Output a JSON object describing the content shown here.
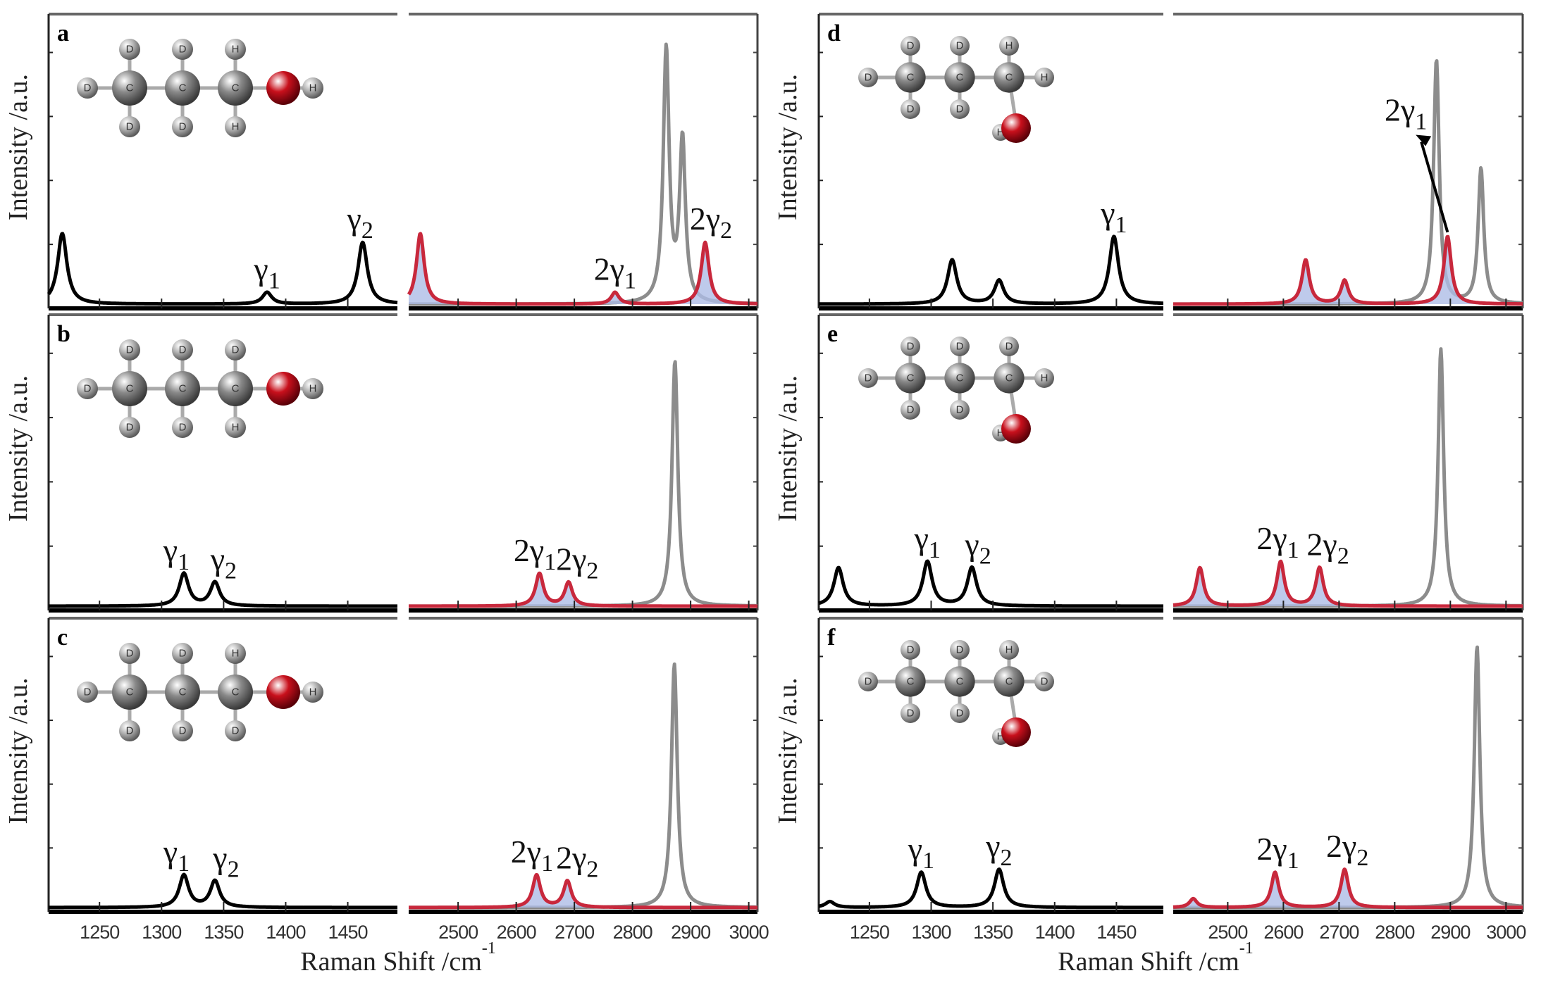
{
  "chart_data": [
    {
      "type": "line",
      "panel_label": "a",
      "ylabel": "Intensity /a.u.",
      "molecule": {
        "geometry": "OH-linear",
        "top": [
          "D",
          "D",
          "H"
        ],
        "bottom": [
          "D",
          "D",
          "H"
        ],
        "end": "D",
        "o_h": "H"
      },
      "low": {
        "xlim": [
          1209,
          1490
        ],
        "peaks": [
          [
            1220,
            0.24
          ],
          [
            1385,
            0.04
          ],
          [
            1462,
            0.21
          ]
        ]
      },
      "high": {
        "xlim": [
          2415,
          3015
        ],
        "red_peaks": [
          [
            2435,
            0.24
          ],
          [
            2770,
            0.04
          ],
          [
            2925,
            0.21
          ]
        ],
        "gray_peaks": [
          [
            2858,
            0.86
          ],
          [
            2886,
            0.55
          ]
        ]
      },
      "annotations": [
        {
          "sub_plot": "low",
          "base": "γ",
          "sub": "1",
          "x": 1385,
          "y": 0.04
        },
        {
          "sub_plot": "low",
          "base": "γ",
          "sub": "2",
          "x": 1460,
          "y": 0.21
        },
        {
          "sub_plot": "high",
          "base": "2γ",
          "sub": "1",
          "x": 2770,
          "y": 0.04
        },
        {
          "sub_plot": "high",
          "base": "2γ",
          "sub": "2",
          "x": 2935,
          "y": 0.21
        }
      ]
    },
    {
      "type": "line",
      "panel_label": "b",
      "ylabel": "Intensity /a.u.",
      "molecule": {
        "geometry": "OH-linear",
        "top": [
          "D",
          "D",
          "D"
        ],
        "bottom": [
          "D",
          "D",
          "H"
        ],
        "end": "D",
        "o_h": "H"
      },
      "low": {
        "xlim": [
          1209,
          1490
        ],
        "peaks": [
          [
            1318,
            0.11
          ],
          [
            1343,
            0.08
          ]
        ]
      },
      "high": {
        "xlim": [
          2415,
          3015
        ],
        "red_peaks": [
          [
            2640,
            0.11
          ],
          [
            2690,
            0.08
          ]
        ],
        "gray_peaks": [
          [
            2873,
            0.83
          ]
        ]
      },
      "annotations": [
        {
          "sub_plot": "low",
          "base": "γ",
          "sub": "1",
          "x": 1312,
          "y": 0.11
        },
        {
          "sub_plot": "low",
          "base": "γ",
          "sub": "2",
          "x": 1350,
          "y": 0.08
        },
        {
          "sub_plot": "high",
          "base": "2γ",
          "sub": "1",
          "x": 2632,
          "y": 0.11
        },
        {
          "sub_plot": "high",
          "base": "2γ",
          "sub": "2",
          "x": 2705,
          "y": 0.08
        }
      ]
    },
    {
      "type": "line",
      "panel_label": "c",
      "ylabel": "Intensity /a.u.",
      "molecule": {
        "geometry": "OH-linear",
        "top": [
          "D",
          "D",
          "H"
        ],
        "bottom": [
          "D",
          "D",
          "D"
        ],
        "end": "D",
        "o_h": "H"
      },
      "low": {
        "xlim": [
          1209,
          1490
        ],
        "peaks": [
          [
            1318,
            0.11
          ],
          [
            1343,
            0.09
          ]
        ]
      },
      "high": {
        "xlim": [
          2415,
          3015
        ],
        "red_peaks": [
          [
            2635,
            0.11
          ],
          [
            2688,
            0.09
          ]
        ],
        "gray_peaks": [
          [
            2872,
            0.83
          ]
        ]
      },
      "annotations": [
        {
          "sub_plot": "low",
          "base": "γ",
          "sub": "1",
          "x": 1312,
          "y": 0.11
        },
        {
          "sub_plot": "low",
          "base": "γ",
          "sub": "2",
          "x": 1352,
          "y": 0.09
        },
        {
          "sub_plot": "high",
          "base": "2γ",
          "sub": "1",
          "x": 2627,
          "y": 0.11
        },
        {
          "sub_plot": "high",
          "base": "2γ",
          "sub": "2",
          "x": 2705,
          "y": 0.09
        }
      ]
    },
    {
      "type": "line",
      "panel_label": "d",
      "ylabel": "Intensity /a.u.",
      "molecule": {
        "geometry": "OH-down",
        "top": [
          "D",
          "D",
          "H"
        ],
        "bottom": [
          "D",
          "D"
        ],
        "end": "D",
        "side": "H",
        "o_h": "H"
      },
      "low": {
        "xlim": [
          1209,
          1488
        ],
        "peaks": [
          [
            1317,
            0.15
          ],
          [
            1355,
            0.08
          ],
          [
            1448,
            0.23
          ]
        ]
      },
      "high": {
        "xlim": [
          2402,
          3030
        ],
        "red_peaks": [
          [
            2640,
            0.15
          ],
          [
            2710,
            0.08
          ],
          [
            2895,
            0.23
          ]
        ],
        "gray_peaks": [
          [
            2875,
            0.83
          ],
          [
            2955,
            0.46
          ]
        ]
      },
      "annotations": [
        {
          "sub_plot": "low",
          "base": "γ",
          "sub": "1",
          "x": 1448,
          "y": 0.23
        },
        {
          "sub_plot": "high",
          "base": "2γ",
          "sub": "1",
          "x": 2820,
          "y": 0.58,
          "arrow_to": [
            2895,
            0.23
          ]
        }
      ]
    },
    {
      "type": "line",
      "panel_label": "e",
      "ylabel": "Intensity /a.u.",
      "molecule": {
        "geometry": "OH-down",
        "top": [
          "D",
          "D",
          "D"
        ],
        "bottom": [
          "D",
          "D"
        ],
        "end": "D",
        "side": "H",
        "o_h": "H"
      },
      "low": {
        "xlim": [
          1209,
          1488
        ],
        "peaks": [
          [
            1225,
            0.13
          ],
          [
            1297,
            0.15
          ],
          [
            1333,
            0.13
          ]
        ]
      },
      "high": {
        "xlim": [
          2402,
          3030
        ],
        "red_peaks": [
          [
            2450,
            0.13
          ],
          [
            2595,
            0.15
          ],
          [
            2665,
            0.13
          ]
        ],
        "gray_peaks": [
          [
            2883,
            0.87
          ]
        ]
      },
      "annotations": [
        {
          "sub_plot": "low",
          "base": "γ",
          "sub": "1",
          "x": 1297,
          "y": 0.15
        },
        {
          "sub_plot": "low",
          "base": "γ",
          "sub": "2",
          "x": 1338,
          "y": 0.13
        },
        {
          "sub_plot": "high",
          "base": "2γ",
          "sub": "1",
          "x": 2590,
          "y": 0.15
        },
        {
          "sub_plot": "high",
          "base": "2γ",
          "sub": "2",
          "x": 2680,
          "y": 0.13
        }
      ]
    },
    {
      "type": "line",
      "panel_label": "f",
      "ylabel": "Intensity /a.u.",
      "molecule": {
        "geometry": "OH-down",
        "top": [
          "D",
          "D",
          "H"
        ],
        "bottom": [
          "D",
          "D"
        ],
        "end": "D",
        "side": "D",
        "o_h": "H"
      },
      "low": {
        "xlim": [
          1209,
          1488
        ],
        "peaks": [
          [
            1218,
            0.02
          ],
          [
            1292,
            0.12
          ],
          [
            1355,
            0.13
          ]
        ]
      },
      "high": {
        "xlim": [
          2402,
          3030
        ],
        "red_peaks": [
          [
            2438,
            0.03
          ],
          [
            2585,
            0.12
          ],
          [
            2710,
            0.13
          ]
        ],
        "gray_peaks": [
          [
            2948,
            0.89
          ]
        ]
      },
      "annotations": [
        {
          "sub_plot": "low",
          "base": "γ",
          "sub": "1",
          "x": 1292,
          "y": 0.12
        },
        {
          "sub_plot": "low",
          "base": "γ",
          "sub": "2",
          "x": 1355,
          "y": 0.13
        },
        {
          "sub_plot": "high",
          "base": "2γ",
          "sub": "1",
          "x": 2590,
          "y": 0.12
        },
        {
          "sub_plot": "high",
          "base": "2γ",
          "sub": "2",
          "x": 2715,
          "y": 0.13
        }
      ]
    }
  ],
  "axes": {
    "xlabel": "Raman Shift /cm",
    "xlabel_sup": "-1",
    "low_ticks": [
      1250,
      1300,
      1350,
      1400,
      1450
    ],
    "high_ticks": [
      2500,
      2600,
      2700,
      2800,
      2900,
      3000
    ],
    "ylim": [
      0,
      1
    ],
    "y_tick_labels": "none",
    "grid": false
  },
  "colors": {
    "low_line": "#000000",
    "red_line": "#c8283c",
    "red_fill": "#aebde6",
    "gray_line": "#8c8c8c",
    "oxygen": "#c8101c",
    "carbon": "#8a8a8a",
    "hydrogen": "#b8b8b8"
  }
}
